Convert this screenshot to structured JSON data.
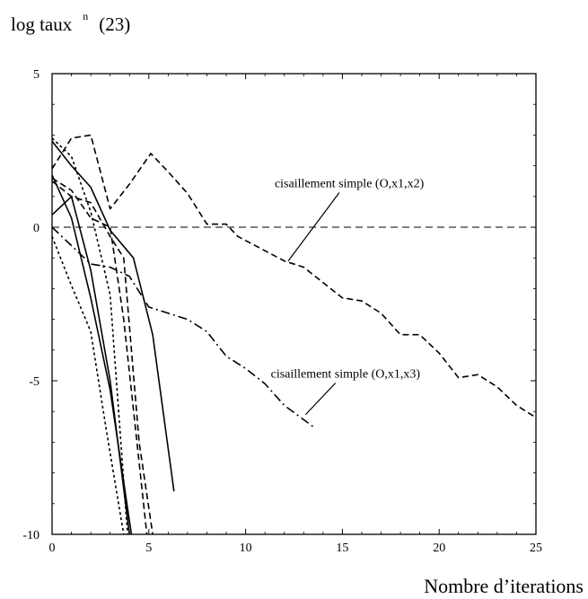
{
  "chart_data": {
    "type": "line",
    "title": {
      "prefix": "log taux",
      "superscript": "n",
      "suffix": "(23)"
    },
    "xlabel": "Nombre d’iterations",
    "ylabel": "",
    "xlim": [
      0,
      25
    ],
    "ylim": [
      -10,
      5
    ],
    "x_ticks": [
      0,
      5,
      10,
      15,
      20,
      25
    ],
    "y_ticks": [
      5,
      0,
      -5,
      -10
    ],
    "grid": false,
    "reference_line": {
      "y": 0,
      "style": "dashed"
    },
    "annotations": [
      {
        "text": "cisaillement simple (O,x1,x2)",
        "x": 11.5,
        "y": 1.3,
        "pointer_to": [
          12.2,
          -1.1
        ]
      },
      {
        "text": "cisaillement simple (O,x1,x3)",
        "x": 11.3,
        "y": -4.9,
        "pointer_to": [
          13.1,
          -6.1
        ]
      }
    ],
    "series": [
      {
        "style": "dashed",
        "x": [
          0,
          1,
          2,
          3,
          4,
          5.1,
          6,
          7,
          8,
          9,
          9.6,
          10.5,
          12,
          13,
          14,
          15,
          16,
          17,
          18,
          19,
          20,
          21,
          22,
          23,
          24,
          25
        ],
        "y": [
          1.9,
          2.9,
          3.0,
          0.6,
          1.4,
          2.4,
          1.8,
          1.1,
          0.1,
          0.1,
          -0.3,
          -0.6,
          -1.1,
          -1.3,
          -1.8,
          -2.3,
          -2.4,
          -2.8,
          -3.5,
          -3.5,
          -4.1,
          -4.9,
          -4.8,
          -5.2,
          -5.8,
          -6.2
        ]
      },
      {
        "style": "dash-dot",
        "x": [
          0,
          1,
          2,
          3,
          4,
          5,
          6,
          7,
          8,
          9,
          10,
          11,
          12,
          13.5
        ],
        "y": [
          0.0,
          -0.6,
          -1.2,
          -1.3,
          -1.6,
          -2.6,
          -2.8,
          -3.0,
          -3.4,
          -4.2,
          -4.6,
          -5.1,
          -5.8,
          -6.5
        ]
      },
      {
        "style": "solid",
        "x": [
          0,
          1,
          2,
          3,
          4.2,
          5.2,
          6.3
        ],
        "y": [
          2.8,
          2.0,
          1.3,
          -0.1,
          -1.0,
          -3.5,
          -8.6
        ]
      },
      {
        "style": "solid",
        "x": [
          0,
          1,
          2,
          3,
          4.0
        ],
        "y": [
          0.4,
          1.0,
          -1.4,
          -5.0,
          -10.0
        ]
      },
      {
        "style": "solid",
        "x": [
          0,
          1,
          2,
          3,
          4.1
        ],
        "y": [
          1.7,
          0.3,
          -2.3,
          -5.3,
          -10.0
        ]
      },
      {
        "style": "dotted",
        "x": [
          0,
          1,
          2,
          3,
          3.9
        ],
        "y": [
          2.9,
          2.3,
          0.5,
          -2.2,
          -10.0
        ]
      },
      {
        "style": "dotted",
        "x": [
          0,
          1,
          2,
          2.8,
          3.7
        ],
        "y": [
          -0.3,
          -1.9,
          -3.4,
          -6.6,
          -10.0
        ]
      },
      {
        "style": "dashed",
        "x": [
          0,
          1,
          2,
          3,
          3.7,
          4.5,
          5.2
        ],
        "y": [
          1.5,
          1.0,
          0.8,
          -0.3,
          -1.0,
          -7.0,
          -10.0
        ]
      },
      {
        "style": "dashed",
        "x": [
          0,
          1,
          2,
          3,
          3.7,
          4.3,
          4.9
        ],
        "y": [
          1.6,
          1.2,
          0.3,
          0.0,
          -3.0,
          -6.5,
          -10.0
        ]
      }
    ]
  }
}
